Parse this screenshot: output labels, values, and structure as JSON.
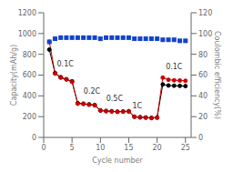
{
  "chart_data": {
    "type": "line",
    "xlabel": "Cycle number",
    "ylabel": "Capacity(mAh/g)",
    "y2label": "Coulombic efficiency(%)",
    "x": [
      1,
      2,
      3,
      4,
      5,
      6,
      7,
      8,
      9,
      10,
      11,
      12,
      13,
      14,
      15,
      16,
      17,
      18,
      19,
      20,
      21,
      22,
      23,
      24,
      25
    ],
    "xlim": [
      0,
      26
    ],
    "xticks": [
      0,
      5,
      10,
      15,
      20,
      25
    ],
    "ylim": [
      0,
      1200
    ],
    "yticks": [
      0,
      200,
      400,
      600,
      800,
      1000,
      1200
    ],
    "y2lim": [
      0,
      120
    ],
    "y2ticks": [
      0,
      20,
      40,
      60,
      80,
      100,
      120
    ],
    "grid": false,
    "series": [
      {
        "type": "line",
        "color": "#000000",
        "marker": "circle",
        "line_style": "solid",
        "values": [
          845,
          620,
          580,
          560,
          540,
          330,
          325,
          318,
          312,
          260,
          255,
          252,
          248,
          250,
          252,
          200,
          195,
          192,
          188,
          192,
          510,
          500,
          498,
          496,
          494
        ]
      },
      {
        "type": "line",
        "color": "#cc0000",
        "marker": "circle",
        "line_style": "solid",
        "values": [
          920,
          615,
          575,
          558,
          535,
          325,
          322,
          315,
          308,
          258,
          252,
          250,
          246,
          248,
          250,
          198,
          192,
          190,
          186,
          190,
          575,
          555,
          550,
          548,
          545
        ]
      },
      {
        "type": "scatter",
        "axis": "y2",
        "color": "#1144cc",
        "marker": "square",
        "values": [
          92,
          95,
          96,
          96,
          96,
          96,
          96,
          96,
          96,
          95,
          96,
          96,
          96,
          96,
          96,
          95,
          95,
          95,
          95,
          95,
          94,
          94,
          94,
          93,
          93
        ]
      }
    ],
    "annotations": [
      {
        "text": "0.1C",
        "x": 3.8,
        "y": 640
      },
      {
        "text": "0.2C",
        "x": 8.5,
        "y": 380
      },
      {
        "text": "0.5C",
        "x": 12.5,
        "y": 305
      },
      {
        "text": "1C",
        "x": 16.5,
        "y": 240
      },
      {
        "text": "0.1C",
        "x": 23.0,
        "y": 610
      }
    ]
  }
}
